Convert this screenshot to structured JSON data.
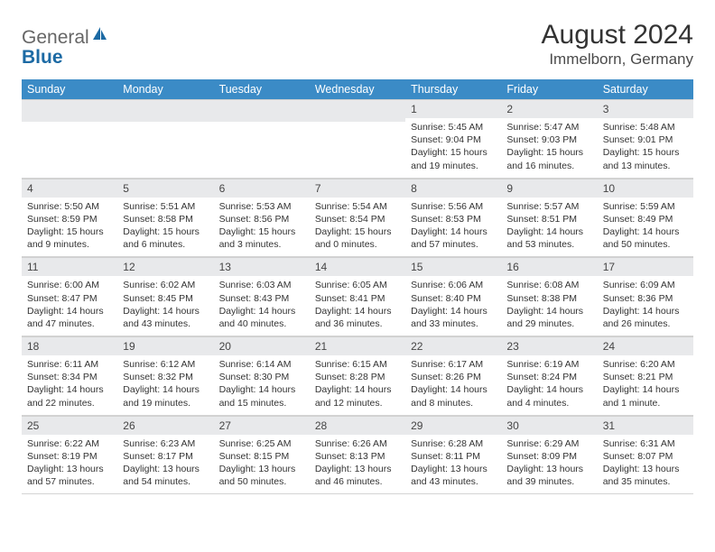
{
  "brand": {
    "name_part1": "General",
    "name_part2": "Blue",
    "icon_color": "#1c6aa4",
    "text1_color": "#666666",
    "text2_color": "#1c6aa4"
  },
  "title": "August 2024",
  "location": "Immelborn, Germany",
  "header_bg": "#3b8bc6",
  "header_text_color": "#ffffff",
  "daynum_bg": "#e8e9eb",
  "border_color": "#d4d4d4",
  "page_bg": "#ffffff",
  "text_color": "#333333",
  "title_fontsize": 30,
  "location_fontsize": 17,
  "header_fontsize": 12.5,
  "daynum_fontsize": 12,
  "detail_fontsize": 10.5,
  "weekdays": [
    "Sunday",
    "Monday",
    "Tuesday",
    "Wednesday",
    "Thursday",
    "Friday",
    "Saturday"
  ],
  "weeks": [
    [
      null,
      null,
      null,
      null,
      {
        "n": "1",
        "sunrise": "5:45 AM",
        "sunset": "9:04 PM",
        "daylight": "15 hours and 19 minutes."
      },
      {
        "n": "2",
        "sunrise": "5:47 AM",
        "sunset": "9:03 PM",
        "daylight": "15 hours and 16 minutes."
      },
      {
        "n": "3",
        "sunrise": "5:48 AM",
        "sunset": "9:01 PM",
        "daylight": "15 hours and 13 minutes."
      }
    ],
    [
      {
        "n": "4",
        "sunrise": "5:50 AM",
        "sunset": "8:59 PM",
        "daylight": "15 hours and 9 minutes."
      },
      {
        "n": "5",
        "sunrise": "5:51 AM",
        "sunset": "8:58 PM",
        "daylight": "15 hours and 6 minutes."
      },
      {
        "n": "6",
        "sunrise": "5:53 AM",
        "sunset": "8:56 PM",
        "daylight": "15 hours and 3 minutes."
      },
      {
        "n": "7",
        "sunrise": "5:54 AM",
        "sunset": "8:54 PM",
        "daylight": "15 hours and 0 minutes."
      },
      {
        "n": "8",
        "sunrise": "5:56 AM",
        "sunset": "8:53 PM",
        "daylight": "14 hours and 57 minutes."
      },
      {
        "n": "9",
        "sunrise": "5:57 AM",
        "sunset": "8:51 PM",
        "daylight": "14 hours and 53 minutes."
      },
      {
        "n": "10",
        "sunrise": "5:59 AM",
        "sunset": "8:49 PM",
        "daylight": "14 hours and 50 minutes."
      }
    ],
    [
      {
        "n": "11",
        "sunrise": "6:00 AM",
        "sunset": "8:47 PM",
        "daylight": "14 hours and 47 minutes."
      },
      {
        "n": "12",
        "sunrise": "6:02 AM",
        "sunset": "8:45 PM",
        "daylight": "14 hours and 43 minutes."
      },
      {
        "n": "13",
        "sunrise": "6:03 AM",
        "sunset": "8:43 PM",
        "daylight": "14 hours and 40 minutes."
      },
      {
        "n": "14",
        "sunrise": "6:05 AM",
        "sunset": "8:41 PM",
        "daylight": "14 hours and 36 minutes."
      },
      {
        "n": "15",
        "sunrise": "6:06 AM",
        "sunset": "8:40 PM",
        "daylight": "14 hours and 33 minutes."
      },
      {
        "n": "16",
        "sunrise": "6:08 AM",
        "sunset": "8:38 PM",
        "daylight": "14 hours and 29 minutes."
      },
      {
        "n": "17",
        "sunrise": "6:09 AM",
        "sunset": "8:36 PM",
        "daylight": "14 hours and 26 minutes."
      }
    ],
    [
      {
        "n": "18",
        "sunrise": "6:11 AM",
        "sunset": "8:34 PM",
        "daylight": "14 hours and 22 minutes."
      },
      {
        "n": "19",
        "sunrise": "6:12 AM",
        "sunset": "8:32 PM",
        "daylight": "14 hours and 19 minutes."
      },
      {
        "n": "20",
        "sunrise": "6:14 AM",
        "sunset": "8:30 PM",
        "daylight": "14 hours and 15 minutes."
      },
      {
        "n": "21",
        "sunrise": "6:15 AM",
        "sunset": "8:28 PM",
        "daylight": "14 hours and 12 minutes."
      },
      {
        "n": "22",
        "sunrise": "6:17 AM",
        "sunset": "8:26 PM",
        "daylight": "14 hours and 8 minutes."
      },
      {
        "n": "23",
        "sunrise": "6:19 AM",
        "sunset": "8:24 PM",
        "daylight": "14 hours and 4 minutes."
      },
      {
        "n": "24",
        "sunrise": "6:20 AM",
        "sunset": "8:21 PM",
        "daylight": "14 hours and 1 minute."
      }
    ],
    [
      {
        "n": "25",
        "sunrise": "6:22 AM",
        "sunset": "8:19 PM",
        "daylight": "13 hours and 57 minutes."
      },
      {
        "n": "26",
        "sunrise": "6:23 AM",
        "sunset": "8:17 PM",
        "daylight": "13 hours and 54 minutes."
      },
      {
        "n": "27",
        "sunrise": "6:25 AM",
        "sunset": "8:15 PM",
        "daylight": "13 hours and 50 minutes."
      },
      {
        "n": "28",
        "sunrise": "6:26 AM",
        "sunset": "8:13 PM",
        "daylight": "13 hours and 46 minutes."
      },
      {
        "n": "29",
        "sunrise": "6:28 AM",
        "sunset": "8:11 PM",
        "daylight": "13 hours and 43 minutes."
      },
      {
        "n": "30",
        "sunrise": "6:29 AM",
        "sunset": "8:09 PM",
        "daylight": "13 hours and 39 minutes."
      },
      {
        "n": "31",
        "sunrise": "6:31 AM",
        "sunset": "8:07 PM",
        "daylight": "13 hours and 35 minutes."
      }
    ]
  ]
}
